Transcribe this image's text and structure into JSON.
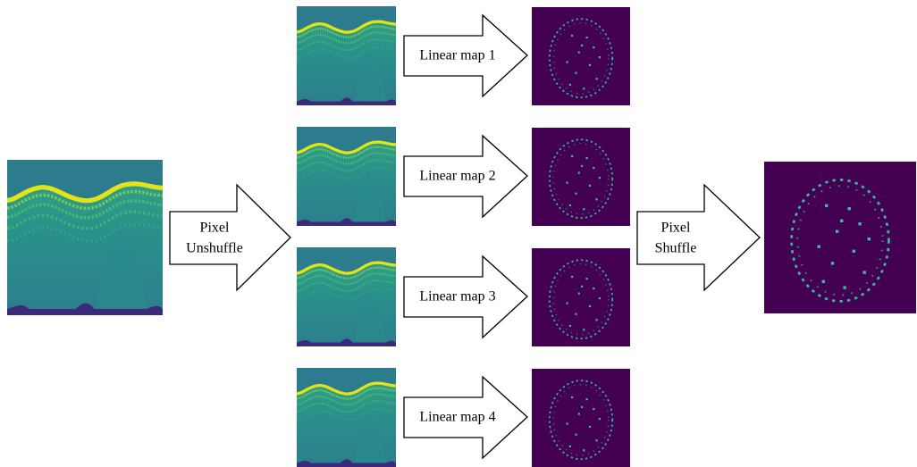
{
  "unshuffle_arrow": {
    "lines": [
      "Pixel",
      "Unshuffle"
    ]
  },
  "linear_maps": [
    "Linear map 1",
    "Linear map 2",
    "Linear map 3",
    "Linear map 4"
  ],
  "shuffle_arrow": {
    "lines": [
      "Pixel",
      "Shuffle"
    ]
  }
}
